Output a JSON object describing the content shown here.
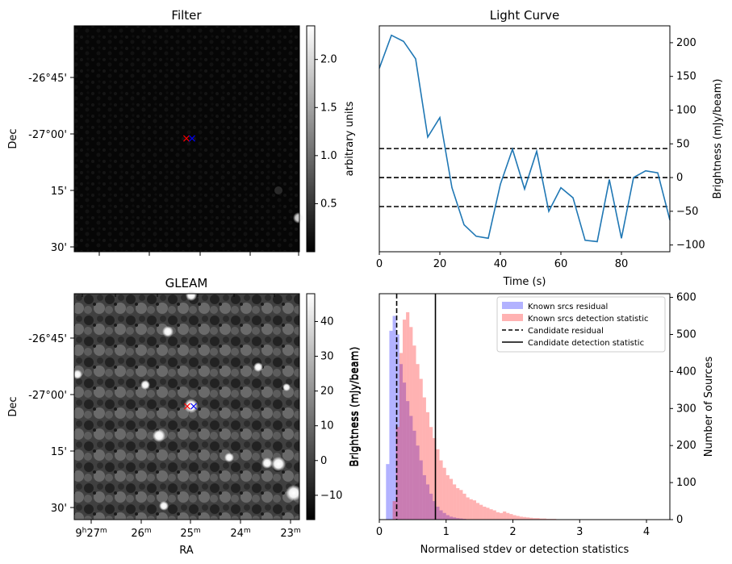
{
  "chart_data": [
    {
      "id": "filter",
      "type": "heatmap",
      "title": "Filter",
      "ylabel": "Dec",
      "yticks": [
        "-26°45'",
        "-27°00'",
        "15'",
        "30'"
      ],
      "colorbar": {
        "label": "arbitrary units",
        "range": [
          0,
          2.35
        ],
        "ticks": [
          "0.5",
          "1.0",
          "1.5",
          "2.0"
        ],
        "tick_values": [
          0.5,
          1.0,
          1.5,
          2.0
        ]
      },
      "markers": [
        {
          "symbol": "×",
          "color": "#ff0000"
        },
        {
          "symbol": "×",
          "color": "#0000ff"
        }
      ]
    },
    {
      "id": "light_curve",
      "type": "line",
      "title": "Light Curve",
      "xlabel": "Time (s)",
      "ylabel": "Brightness (mJy/beam)",
      "xlim": [
        0,
        96
      ],
      "ylim": [
        -110,
        225
      ],
      "xticks": [
        0,
        20,
        40,
        60,
        80
      ],
      "yticks": [
        -100,
        -50,
        0,
        50,
        100,
        150,
        200
      ],
      "x": [
        0,
        4,
        8,
        12,
        16,
        20,
        24,
        28,
        32,
        36,
        40,
        44,
        48,
        52,
        56,
        60,
        64,
        68,
        72,
        76,
        80,
        84,
        88,
        92,
        96
      ],
      "values": [
        162,
        211,
        202,
        176,
        60,
        89,
        -15,
        -70,
        -87,
        -90,
        -10,
        42,
        -17,
        39,
        -50,
        -15,
        -30,
        -93,
        -95,
        -3,
        -90,
        0,
        10,
        7,
        -63
      ],
      "line_color": "#1f77b4",
      "hlines": [
        43,
        0,
        -43
      ]
    },
    {
      "id": "gleam",
      "type": "heatmap",
      "title": "GLEAM",
      "xlabel": "RA",
      "ylabel": "Dec",
      "xticks": [
        {
          "main": "9",
          "sup1": "h",
          "mid": "27",
          "sup2": "m"
        },
        {
          "main": "26",
          "sup2": "m"
        },
        {
          "main": "25",
          "sup2": "m"
        },
        {
          "main": "24",
          "sup2": "m"
        },
        {
          "main": "23",
          "sup2": "m"
        }
      ],
      "yticks": [
        "-26°45'",
        "-27°00'",
        "15'",
        "30'"
      ],
      "colorbar": {
        "label": "Brightness (mJy/beam)",
        "range": [
          -17,
          48
        ],
        "ticks": [
          "−10",
          "0",
          "10",
          "20",
          "30",
          "40"
        ],
        "tick_values": [
          -10,
          0,
          10,
          20,
          30,
          40
        ]
      },
      "markers": [
        {
          "symbol": "×",
          "color": "#ff0000"
        },
        {
          "symbol": "×",
          "color": "#0000ff"
        }
      ]
    },
    {
      "id": "histogram",
      "type": "bar",
      "xlabel": "Normalised stdev or detection statistics",
      "ylabel": "Number of Sources",
      "xlim": [
        0,
        4.35
      ],
      "ylim": [
        0,
        610
      ],
      "xticks": [
        0,
        1,
        2,
        3,
        4
      ],
      "yticks": [
        0,
        100,
        200,
        300,
        400,
        500,
        600
      ],
      "bin_start": 0.05,
      "bin_width": 0.05,
      "series": [
        {
          "name": "Known srcs residual",
          "color": "#0000ff",
          "alpha": 0.3,
          "values": [
            0,
            150,
            510,
            550,
            500,
            420,
            370,
            320,
            280,
            240,
            200,
            160,
            120,
            95,
            70,
            50,
            35,
            25,
            18,
            12,
            8,
            6,
            4,
            3,
            2,
            1
          ]
        },
        {
          "name": "Known srcs detection statistic",
          "color": "#ff0000",
          "alpha": 0.3,
          "values": [
            0,
            0,
            0,
            50,
            250,
            450,
            540,
            560,
            520,
            470,
            420,
            380,
            330,
            290,
            250,
            220,
            190,
            160,
            140,
            120,
            110,
            95,
            85,
            80,
            70,
            60,
            55,
            52,
            45,
            40,
            35,
            32,
            28,
            25,
            20,
            18,
            22,
            18,
            15,
            12,
            10,
            8,
            7,
            6,
            5,
            4,
            4,
            3,
            3,
            2,
            2,
            2,
            1,
            1,
            1,
            1,
            1,
            1,
            1,
            1,
            1,
            1,
            1,
            1,
            1,
            1,
            1,
            1,
            1,
            1,
            1,
            1,
            1,
            1,
            1,
            1,
            1,
            1,
            1,
            1,
            1,
            1,
            1,
            1
          ]
        }
      ],
      "vlines": [
        {
          "name": "Candidate residual",
          "x": 0.26,
          "style": "dashed"
        },
        {
          "name": "Candidate detection statistic",
          "x": 0.84,
          "style": "solid"
        }
      ],
      "left_axis_label": "Brightness (mJy/beam)"
    }
  ]
}
